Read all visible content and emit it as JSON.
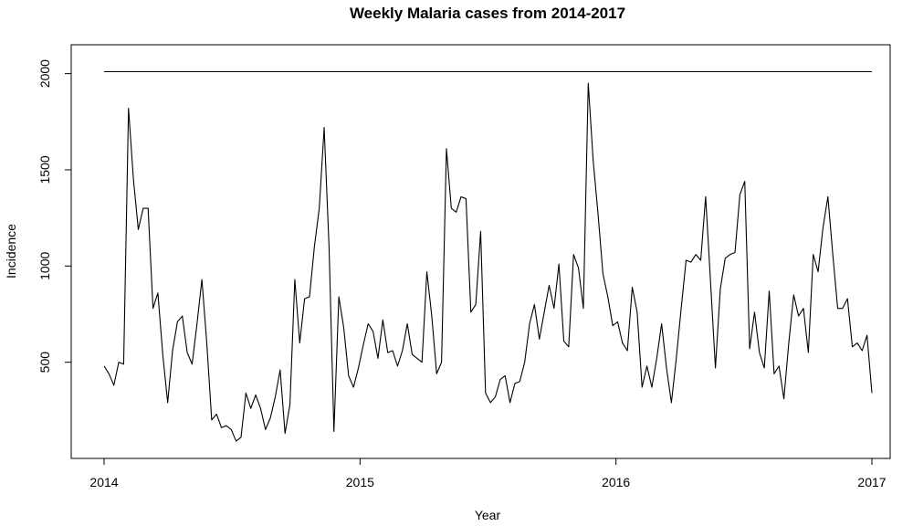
{
  "chart_data": {
    "type": "line",
    "title": "Weekly Malaria cases from 2014-2017",
    "xlabel": "Year",
    "ylabel": "Incidence",
    "xlim": [
      2014,
      2017
    ],
    "ylim": [
      0,
      2150
    ],
    "x_ticks": [
      {
        "value": 2014,
        "label": "2014"
      },
      {
        "value": 2015,
        "label": "2015"
      },
      {
        "value": 2016,
        "label": "2016"
      },
      {
        "value": 2017,
        "label": "2017"
      }
    ],
    "y_ticks": [
      {
        "value": 500,
        "label": "500"
      },
      {
        "value": 1000,
        "label": "1000"
      },
      {
        "value": 1500,
        "label": "1500"
      },
      {
        "value": 2000,
        "label": "2000"
      }
    ],
    "grid": false,
    "series": [
      {
        "values": [
          480,
          440,
          380,
          500,
          490,
          1820,
          1450,
          1190,
          1300,
          1300,
          780,
          860,
          540,
          290,
          560,
          710,
          740,
          550,
          490,
          700,
          930,
          600,
          200,
          230,
          160,
          170,
          150,
          90,
          110,
          340,
          260,
          330,
          260,
          150,
          210,
          320,
          460,
          130,
          280,
          930,
          600,
          830,
          840,
          1100,
          1300,
          1720,
          1100,
          140,
          840,
          680,
          430,
          370,
          470,
          590,
          700,
          660,
          520,
          720,
          550,
          560,
          480,
          560,
          700,
          540,
          520,
          500,
          970,
          740,
          440,
          500,
          1610,
          1300,
          1280,
          1360,
          1350,
          760,
          800,
          1180,
          340,
          290,
          320,
          410,
          430,
          290,
          390,
          400,
          500,
          700,
          800,
          620,
          760,
          900,
          780,
          1010,
          610,
          580,
          1060,
          990,
          780,
          1950,
          1550,
          1270,
          960,
          840,
          690,
          710,
          600,
          560,
          890,
          760,
          370,
          480,
          370,
          520,
          700,
          470,
          290,
          520,
          780,
          1030,
          1020,
          1060,
          1030,
          1360,
          920,
          470,
          880,
          1040,
          1060,
          1070,
          1370,
          1440,
          570,
          760,
          550,
          470,
          870,
          440,
          480,
          310,
          600,
          850,
          740,
          780,
          550,
          1060,
          970,
          1200,
          1360,
          1060,
          780,
          780,
          830,
          580,
          600,
          560,
          640,
          340
        ]
      },
      {
        "values": [
          2010,
          2010
        ]
      }
    ]
  }
}
